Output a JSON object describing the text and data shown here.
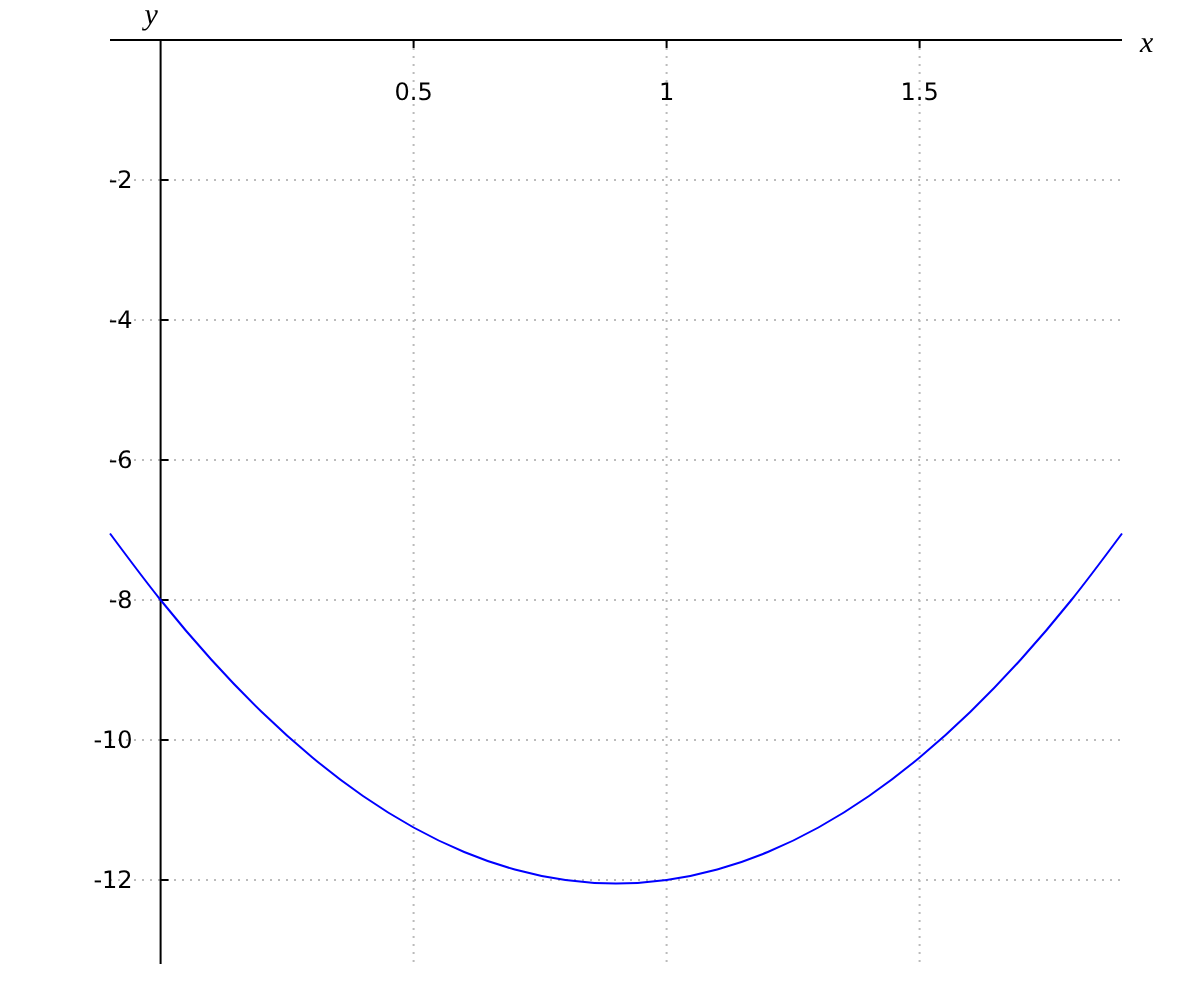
{
  "chart_data": {
    "type": "line",
    "xlabel": "x",
    "ylabel": "y",
    "x": [
      -0.1,
      0,
      0.1,
      0.2,
      0.3,
      0.4,
      0.5,
      0.6,
      0.7,
      0.8,
      0.9,
      1.0,
      1.1,
      1.2,
      1.3,
      1.4,
      1.5,
      1.6,
      1.7,
      1.8,
      1.9
    ],
    "series": [
      {
        "color": "#0000ff",
        "values": [
          -7.05,
          -8,
          -8.85,
          -9.6,
          -10.25,
          -10.8,
          -11.25,
          -11.6,
          -11.85,
          -12,
          -12.05,
          -12,
          -11.85,
          -11.6,
          -11.25,
          -10.8,
          -10.25,
          -9.6,
          -8.85,
          -8,
          -7.05
        ]
      }
    ],
    "xlim": [
      -0.1,
      1.9
    ],
    "ylim": [
      -13.2,
      0
    ],
    "xticks": [
      0.5,
      1,
      1.5
    ],
    "yticks": [
      -2,
      -4,
      -6,
      -8,
      -10,
      -12
    ],
    "grid": true,
    "marker": "none",
    "line_style": "solid"
  }
}
